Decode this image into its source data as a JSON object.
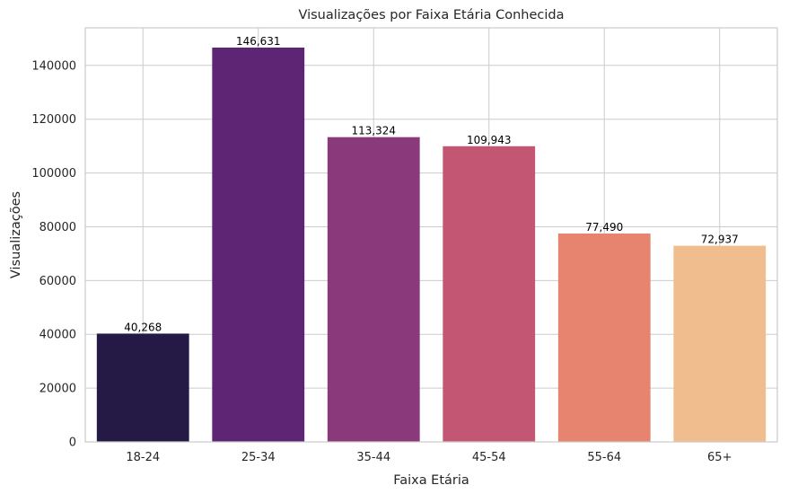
{
  "chart_data": {
    "type": "bar",
    "title": "Visualizações por Faixa Etária Conhecida",
    "xlabel": "Faixa Etária",
    "ylabel": "Visualizações",
    "categories": [
      "18-24",
      "25-34",
      "35-44",
      "45-54",
      "55-64",
      "65+"
    ],
    "values": [
      40268,
      146631,
      113324,
      109943,
      77490,
      72937
    ],
    "data_labels": [
      "40,268",
      "146,631",
      "113,324",
      "109,943",
      "77,490",
      "72,937"
    ],
    "colors": [
      "#251A46",
      "#5D2574",
      "#8A3A7A",
      "#C25673",
      "#E68470",
      "#EFBD8E"
    ],
    "ylim": [
      0,
      153963
    ],
    "yticks": [
      0,
      20000,
      40000,
      60000,
      80000,
      100000,
      120000,
      140000
    ],
    "ytick_labels": [
      "0",
      "20000",
      "40000",
      "60000",
      "80000",
      "100000",
      "120000",
      "140000"
    ],
    "grid": true,
    "grid_axis": "y",
    "legend": "none"
  }
}
